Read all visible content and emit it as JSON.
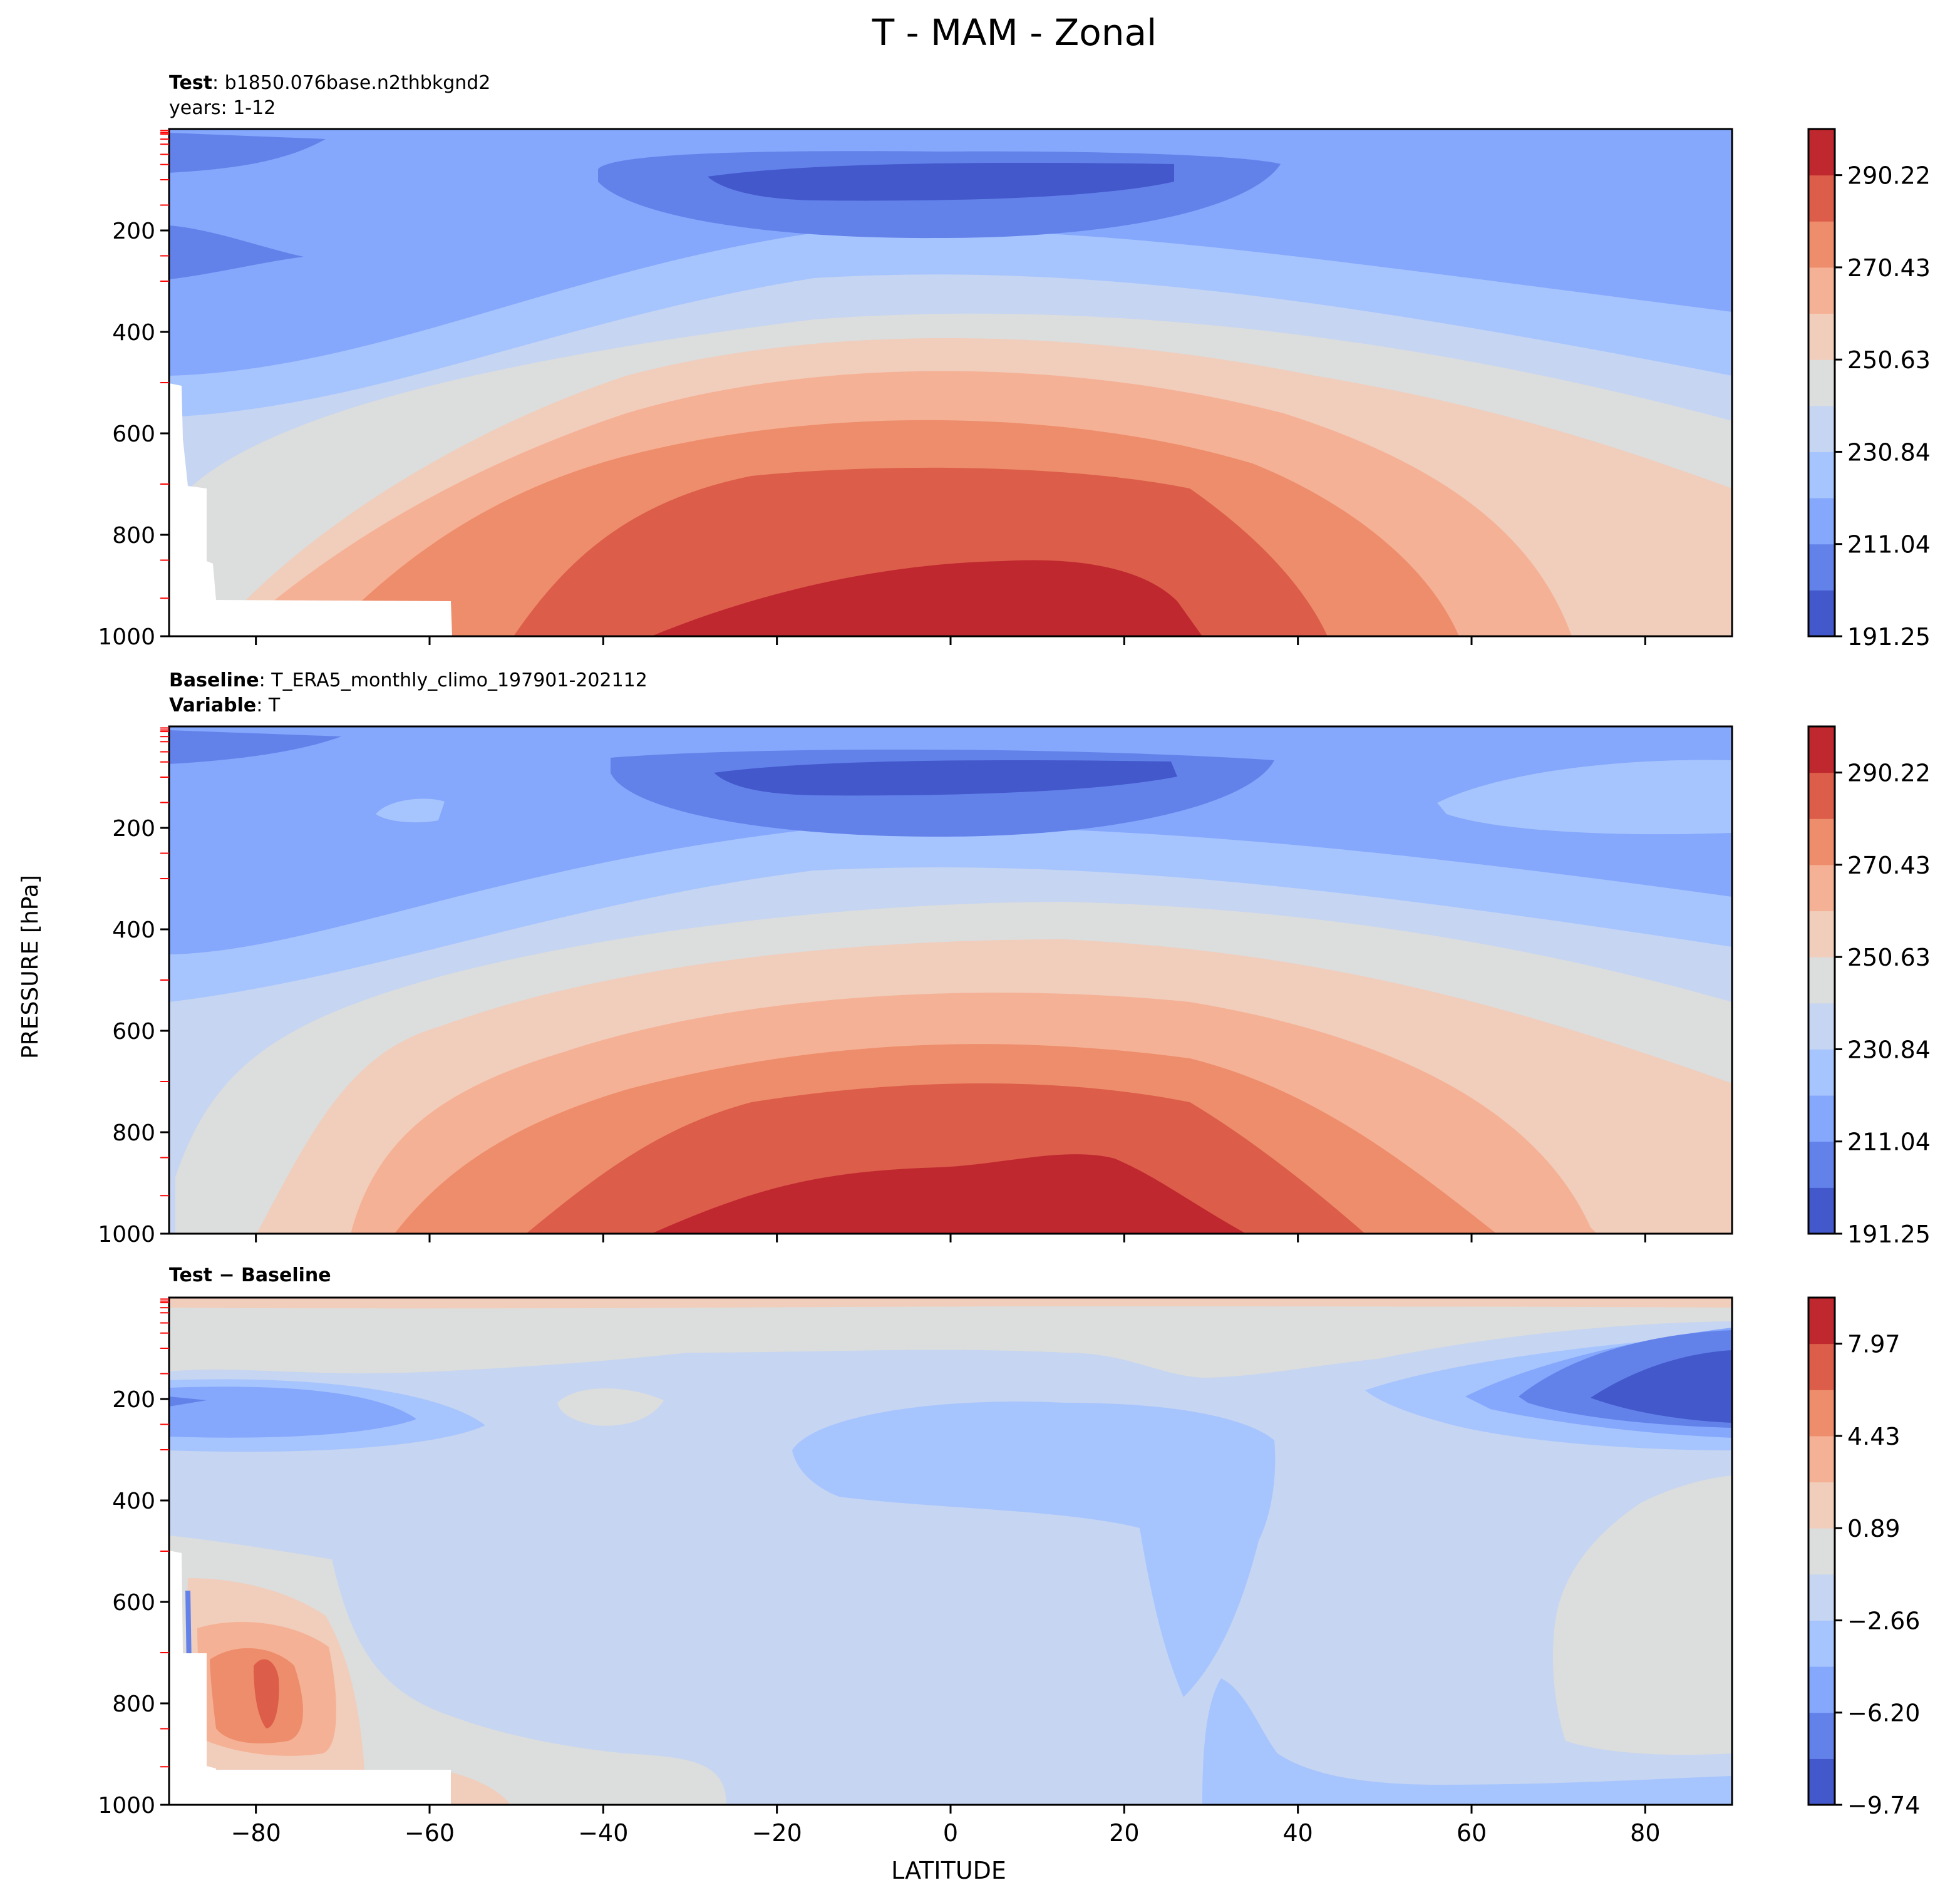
{
  "figure": {
    "title": "T - MAM - Zonal",
    "ylabel": "PRESSURE [hPa]",
    "xlabel": "LATITUDE"
  },
  "chart_data": [
    {
      "type": "contour",
      "panel": "test",
      "header_line1_bold": "Test",
      "header_line1_text": ": b1850.076base.n2thbkgnd2",
      "header_line2_text": "years: 1-12",
      "x_ticks": [
        "−80",
        "−60",
        "−40",
        "−20",
        "0",
        "20",
        "40",
        "60",
        "80"
      ],
      "x_tick_values": [
        -80,
        -60,
        -40,
        -20,
        0,
        20,
        40,
        60,
        80
      ],
      "y_ticks": [
        "200",
        "400",
        "600",
        "800",
        "1000"
      ],
      "y_tick_values": [
        200,
        400,
        600,
        800,
        1000
      ],
      "xlim": [
        -90,
        90
      ],
      "ylim": [
        1000,
        0
      ],
      "colorbar_ticks": [
        "290.22",
        "270.43",
        "250.63",
        "230.84",
        "211.04",
        "191.25"
      ],
      "colorbar_range": [
        191.25,
        300.1
      ],
      "colorbar_levels": 11,
      "colormap": "coolwarm",
      "colors": [
        "#4358cb",
        "#6282ea",
        "#85a7fc",
        "#a6c4fe",
        "#c5d5f2",
        "#dcdddd",
        "#f1cdbb",
        "#f5b195",
        "#ee8d6b",
        "#dc5d4a",
        "#c0282f"
      ],
      "masked_region": "bottom-left (Antarctic surface)"
    },
    {
      "type": "contour",
      "panel": "baseline",
      "header_line1_bold": "Baseline",
      "header_line1_text": ": T_ERA5_monthly_climo_197901-202112",
      "header_line2_bold": "Variable",
      "header_line2_text": ": T",
      "x_ticks": [],
      "y_ticks": [
        "200",
        "400",
        "600",
        "800",
        "1000"
      ],
      "y_tick_values": [
        200,
        400,
        600,
        800,
        1000
      ],
      "xlim": [
        -90,
        90
      ],
      "ylim": [
        1000,
        0
      ],
      "colorbar_ticks": [
        "290.22",
        "270.43",
        "250.63",
        "230.84",
        "211.04",
        "191.25"
      ],
      "colorbar_range": [
        191.25,
        300.1
      ],
      "colorbar_levels": 11,
      "colormap": "coolwarm",
      "colors": [
        "#4358cb",
        "#6282ea",
        "#85a7fc",
        "#a6c4fe",
        "#c5d5f2",
        "#dcdddd",
        "#f1cdbb",
        "#f5b195",
        "#ee8d6b",
        "#dc5d4a",
        "#c0282f"
      ]
    },
    {
      "type": "contour",
      "panel": "difference",
      "header_line1_bold": "Test − Baseline",
      "y_ticks": [
        "200",
        "400",
        "600",
        "800",
        "1000"
      ],
      "y_tick_values": [
        200,
        400,
        600,
        800,
        1000
      ],
      "xlim": [
        -90,
        90
      ],
      "ylim": [
        1000,
        0
      ],
      "colorbar_ticks": [
        "7.97",
        "4.43",
        "0.89",
        "−2.66",
        "−6.20",
        "−9.74"
      ],
      "colorbar_range": [
        -9.74,
        9.74
      ],
      "colorbar_levels": 11,
      "colormap": "coolwarm",
      "colors": [
        "#4358cb",
        "#6282ea",
        "#85a7fc",
        "#a6c4fe",
        "#c5d5f2",
        "#dcdddd",
        "#f1cdbb",
        "#f5b195",
        "#ee8d6b",
        "#dc5d4a",
        "#c0282f"
      ],
      "masked_region": "bottom-left (Antarctic surface)"
    }
  ]
}
